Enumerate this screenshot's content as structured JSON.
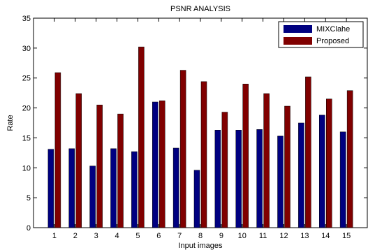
{
  "chart_data": {
    "type": "bar",
    "title": "PSNR ANALYSIS",
    "xlabel": "Input images",
    "ylabel": "Rate",
    "categories": [
      "1",
      "2",
      "3",
      "4",
      "5",
      "6",
      "7",
      "8",
      "9",
      "10",
      "11",
      "12",
      "13",
      "14",
      "15"
    ],
    "ylim": [
      0,
      35
    ],
    "yticks": [
      0,
      5,
      10,
      15,
      20,
      25,
      30,
      35
    ],
    "grid": false,
    "legend_position": "top-right",
    "series": [
      {
        "name": "MIXClahe",
        "color": "#000080",
        "values": [
          13.1,
          13.2,
          10.3,
          13.2,
          12.7,
          21.0,
          13.3,
          9.6,
          16.3,
          16.3,
          16.4,
          15.3,
          17.5,
          18.8,
          16.0
        ]
      },
      {
        "name": "Proposed",
        "color": "#800000",
        "values": [
          25.9,
          22.4,
          20.5,
          19.0,
          30.2,
          21.2,
          26.3,
          24.4,
          19.3,
          24.0,
          22.4,
          20.3,
          25.2,
          21.5,
          22.9
        ]
      }
    ]
  }
}
